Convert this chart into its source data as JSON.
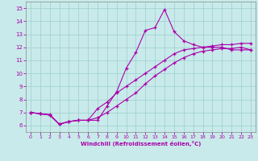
{
  "xlabel": "Windchill (Refroidissement éolien,°C)",
  "bg_color": "#c8eaea",
  "line_color": "#aa00aa",
  "grid_color": "#9ecece",
  "xlim": [
    -0.5,
    23.5
  ],
  "ylim": [
    5.5,
    15.5
  ],
  "xticks": [
    0,
    1,
    2,
    3,
    4,
    5,
    6,
    7,
    8,
    9,
    10,
    11,
    12,
    13,
    14,
    15,
    16,
    17,
    18,
    19,
    20,
    21,
    22,
    23
  ],
  "yticks": [
    6,
    7,
    8,
    9,
    10,
    11,
    12,
    13,
    14,
    15
  ],
  "line1_x": [
    0,
    1,
    2,
    3,
    4,
    5,
    6,
    7,
    8,
    9,
    10,
    11,
    12,
    13,
    14,
    15,
    16,
    17,
    18,
    19,
    20,
    21,
    22,
    23
  ],
  "line1_y": [
    7.0,
    6.9,
    6.8,
    6.1,
    6.3,
    6.4,
    6.4,
    6.4,
    7.5,
    8.6,
    10.4,
    11.6,
    13.3,
    13.5,
    14.9,
    13.2,
    12.5,
    12.2,
    12.0,
    12.0,
    12.0,
    11.8,
    11.8,
    11.8
  ],
  "line2_x": [
    0,
    1,
    2,
    3,
    4,
    5,
    6,
    7,
    8,
    9,
    10,
    11,
    12,
    13,
    14,
    15,
    16,
    17,
    18,
    19,
    20,
    21,
    22,
    23
  ],
  "line2_y": [
    7.0,
    6.9,
    6.8,
    6.1,
    6.3,
    6.4,
    6.4,
    7.3,
    7.8,
    8.5,
    9.0,
    9.5,
    10.0,
    10.5,
    11.0,
    11.5,
    11.8,
    11.9,
    12.0,
    12.1,
    12.2,
    12.2,
    12.3,
    12.3
  ],
  "line3_x": [
    0,
    1,
    2,
    3,
    4,
    5,
    6,
    7,
    8,
    9,
    10,
    11,
    12,
    13,
    14,
    15,
    16,
    17,
    18,
    19,
    20,
    21,
    22,
    23
  ],
  "line3_y": [
    7.0,
    6.9,
    6.85,
    6.1,
    6.3,
    6.4,
    6.4,
    6.6,
    7.0,
    7.5,
    8.0,
    8.5,
    9.2,
    9.8,
    10.3,
    10.8,
    11.2,
    11.5,
    11.7,
    11.8,
    11.9,
    11.9,
    12.0,
    11.8
  ]
}
